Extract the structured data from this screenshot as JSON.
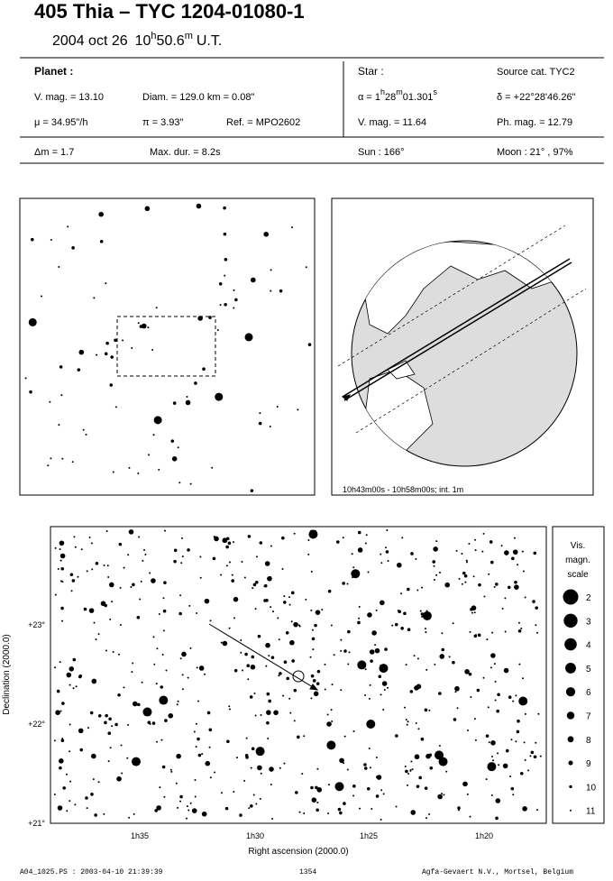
{
  "header": {
    "title": "405 Thia  –  TYC 1204-01080-1",
    "date": "2004 oct 26",
    "time": {
      "hours": "10",
      "h": "h",
      "minutes": "50.6",
      "m": "m",
      "zone": "U.T."
    }
  },
  "planet": {
    "heading": "Planet :",
    "vmag": "V. mag. = 13.10",
    "diam": "Diam. = 129.0 km = 0.08\"",
    "mu": "μ = 34.95\"/h",
    "pi": "π = 3.93\"",
    "ref": "Ref. = MPO2602"
  },
  "star": {
    "heading": "Star :",
    "source": "Source cat.  TYC2",
    "alpha": [
      "α = 1",
      "h",
      "28",
      "m",
      "01.301",
      "s"
    ],
    "delta": "δ = +22°28'46.26\"",
    "vmag": "V. mag. = 11.64",
    "phmag": "Ph. mag. = 12.79"
  },
  "extra": {
    "dm": "Δm = 1.7",
    "maxdur": "Max. dur. = 8.2s",
    "sun": "Sun : 166°",
    "moon": "Moon :  21° , 97%"
  },
  "globe": {
    "caption": "10h43m00s - 10h58m00s; int.  1m"
  },
  "starchart": {
    "yticks": [
      "+23°",
      "+22°",
      "+21°"
    ],
    "ylabel": "Declination (2000.0)",
    "xticks": [
      "1h35",
      "1h30",
      "1h25",
      "1h20"
    ],
    "xlabel": "Right ascension (2000.0)",
    "legend": {
      "title": [
        "Vis.",
        "magn.",
        "scale"
      ],
      "items": [
        "2",
        "3",
        "4",
        "5",
        "6",
        "7",
        "8",
        "9",
        "10",
        "11"
      ]
    }
  },
  "footer": {
    "file": "A04_1025.PS : 2003-04-10 21:39:39",
    "number": "1354",
    "company": "Agfa-Gevaert N.V., Mortsel, Belgium"
  }
}
